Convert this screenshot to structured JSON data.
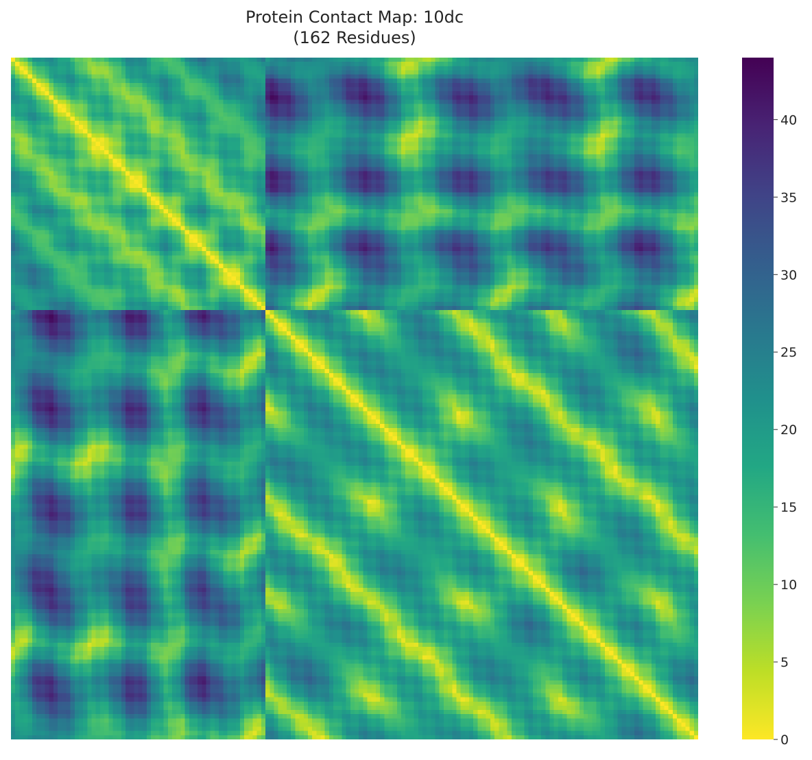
{
  "chart_data": {
    "type": "heatmap",
    "title": "Protein Contact Map: 10dc",
    "subtitle": "(162 Residues)",
    "n_residues": 162,
    "colormap": "viridis_r",
    "value_range": [
      0,
      44
    ],
    "colorbar": {
      "ticks": [
        0,
        5,
        10,
        15,
        20,
        25,
        30,
        35,
        40
      ],
      "tick_labels": [
        "0",
        "5",
        "10",
        "15",
        "20",
        "25",
        "30",
        "35",
        "40"
      ]
    },
    "diagonal_value": 0,
    "domain_boundaries": [
      60
    ],
    "xlabel": "",
    "ylabel": "",
    "grid": false,
    "legend": "colorbar-right"
  }
}
